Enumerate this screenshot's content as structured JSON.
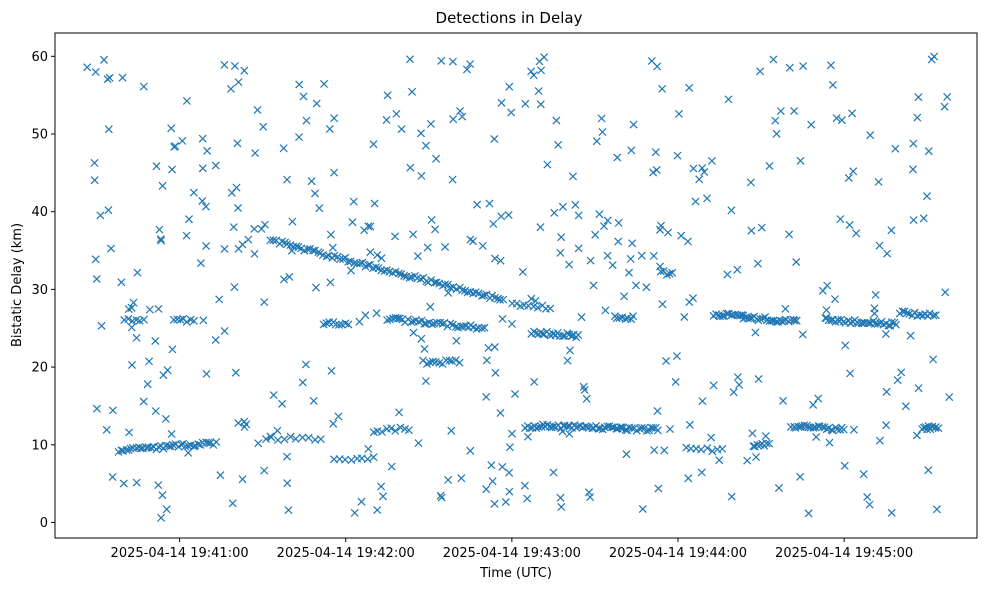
{
  "chart_data": {
    "type": "scatter",
    "title": "Detections in Delay",
    "xlabel": "Time (UTC)",
    "ylabel": "Bistatic Delay (km)",
    "marker": "x",
    "color": "#1f77b4",
    "grid": false,
    "x_range": [
      "2025-04-14 19:40:15",
      "2025-04-14 19:45:48"
    ],
    "ylim": [
      -2.0,
      63.0
    ],
    "x_ticks": [
      "2025-04-14 19:41:00",
      "2025-04-14 19:42:00",
      "2025-04-14 19:43:00",
      "2025-04-14 19:44:00",
      "2025-04-14 19:45:00"
    ],
    "y_ticks": [
      0,
      10,
      20,
      30,
      40,
      50,
      60
    ],
    "tracks": [
      {
        "x_start": "2025-04-14 19:40:38",
        "x_end": "2025-04-14 19:41:13",
        "y_start": 9.3,
        "y_end": 10.2,
        "count": 40
      },
      {
        "x_start": "2025-04-14 19:40:40",
        "x_end": "2025-04-14 19:40:47",
        "y_start": 26.0,
        "y_end": 26.0,
        "count": 6
      },
      {
        "x_start": "2025-04-14 19:40:58",
        "x_end": "2025-04-14 19:41:05",
        "y_start": 26.0,
        "y_end": 26.0,
        "count": 7
      },
      {
        "x_start": "2025-04-14 19:41:31",
        "x_end": "2025-04-14 19:41:51",
        "y_start": 10.8,
        "y_end": 10.8,
        "count": 10
      },
      {
        "x_start": "2025-04-14 19:41:56",
        "x_end": "2025-04-14 19:42:10",
        "y_start": 8.1,
        "y_end": 8.2,
        "count": 8
      },
      {
        "x_start": "2025-04-14 19:42:10",
        "x_end": "2025-04-14 19:42:23",
        "y_start": 11.7,
        "y_end": 12.1,
        "count": 9
      },
      {
        "x_start": "2025-04-14 19:41:33",
        "x_end": "2025-04-14 19:42:57",
        "y_start": 36.3,
        "y_end": 28.6,
        "count": 85
      },
      {
        "x_start": "2025-04-14 19:41:52",
        "x_end": "2025-04-14 19:42:01",
        "y_start": 25.6,
        "y_end": 25.6,
        "count": 9
      },
      {
        "x_start": "2025-04-14 19:42:15",
        "x_end": "2025-04-14 19:42:50",
        "y_start": 26.2,
        "y_end": 25.0,
        "count": 38
      },
      {
        "x_start": "2025-04-14 19:42:28",
        "x_end": "2025-04-14 19:42:41",
        "y_start": 20.6,
        "y_end": 20.7,
        "count": 12
      },
      {
        "x_start": "2025-04-14 19:43:00",
        "x_end": "2025-04-14 19:43:14",
        "y_start": 28.2,
        "y_end": 27.6,
        "count": 10
      },
      {
        "x_start": "2025-04-14 19:43:05",
        "x_end": "2025-04-14 19:43:40",
        "y_start": 12.4,
        "y_end": 12.2,
        "count": 45
      },
      {
        "x_start": "2025-04-14 19:43:07",
        "x_end": "2025-04-14 19:43:24",
        "y_start": 24.5,
        "y_end": 24.0,
        "count": 22
      },
      {
        "x_start": "2025-04-14 19:43:37",
        "x_end": "2025-04-14 19:43:44",
        "y_start": 26.4,
        "y_end": 26.3,
        "count": 8
      },
      {
        "x_start": "2025-04-14 19:43:40",
        "x_end": "2025-04-14 19:43:53",
        "y_start": 12.1,
        "y_end": 12.0,
        "count": 16
      },
      {
        "x_start": "2025-04-14 19:43:54",
        "x_end": "2025-04-14 19:43:58",
        "y_start": 32.2,
        "y_end": 32.0,
        "count": 5
      },
      {
        "x_start": "2025-04-14 19:44:03",
        "x_end": "2025-04-14 19:44:16",
        "y_start": 9.4,
        "y_end": 9.4,
        "count": 8
      },
      {
        "x_start": "2025-04-14 19:44:13",
        "x_end": "2025-04-14 19:44:43",
        "y_start": 26.8,
        "y_end": 25.8,
        "count": 40
      },
      {
        "x_start": "2025-04-14 19:44:27",
        "x_end": "2025-04-14 19:44:33",
        "y_start": 10.0,
        "y_end": 10.1,
        "count": 8
      },
      {
        "x_start": "2025-04-14 19:44:41",
        "x_end": "2025-04-14 19:45:00",
        "y_start": 12.4,
        "y_end": 12.0,
        "count": 25
      },
      {
        "x_start": "2025-04-14 19:44:53",
        "x_end": "2025-04-14 19:45:19",
        "y_start": 26.1,
        "y_end": 25.5,
        "count": 35
      },
      {
        "x_start": "2025-04-14 19:45:20",
        "x_end": "2025-04-14 19:45:33",
        "y_start": 27.0,
        "y_end": 26.6,
        "count": 15
      },
      {
        "x_start": "2025-04-14 19:45:28",
        "x_end": "2025-04-14 19:45:34",
        "y_start": 12.2,
        "y_end": 12.2,
        "count": 10
      }
    ],
    "clutter_points": 450,
    "clutter_y_range": [
      0.5,
      60.0
    ]
  }
}
